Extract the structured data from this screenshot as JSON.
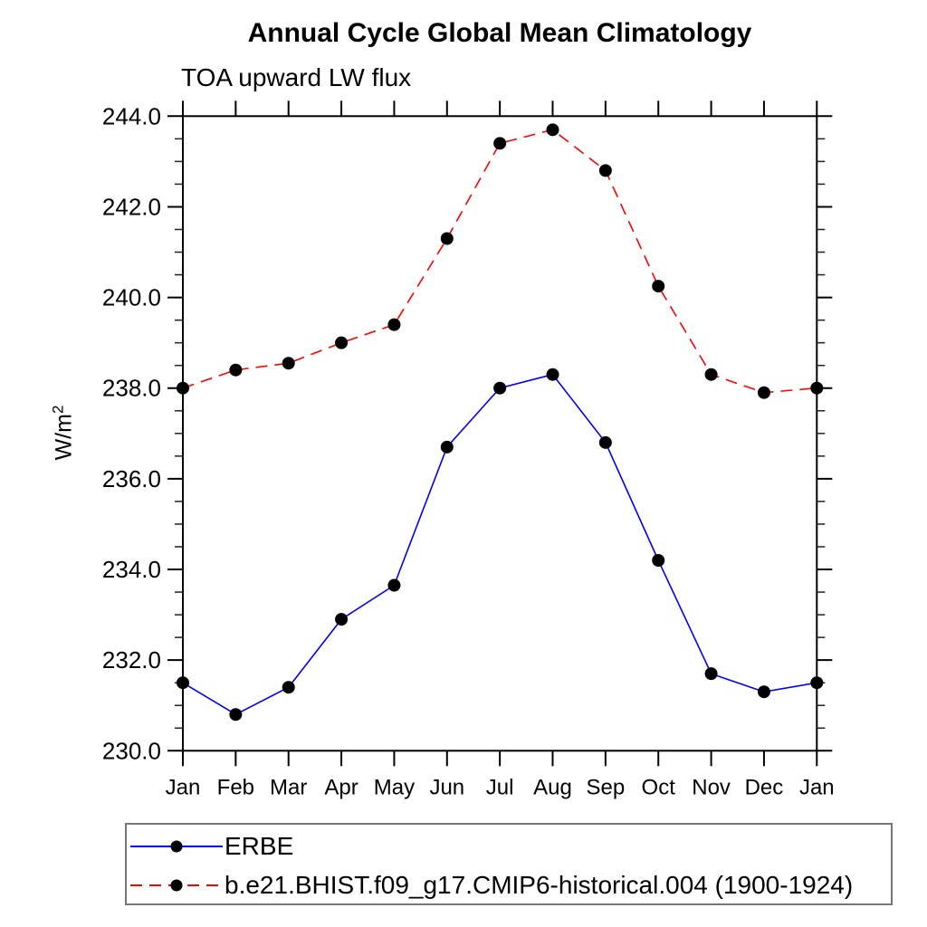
{
  "chart_data": {
    "type": "line",
    "title": "Annual Cycle Global Mean Climatology",
    "subtitle": "TOA upward LW flux",
    "ylabel": "W/m²",
    "ylabel_base": "W/m",
    "ylabel_sup": "2",
    "xlabel": "",
    "categories": [
      "Jan",
      "Feb",
      "Mar",
      "Apr",
      "May",
      "Jun",
      "Jul",
      "Aug",
      "Sep",
      "Oct",
      "Nov",
      "Dec",
      "Jan"
    ],
    "series": [
      {
        "name": "ERBE",
        "color": "#0000ff",
        "line_style": "solid",
        "marker": "filled-circle",
        "marker_color": "#000000",
        "values": [
          231.5,
          230.8,
          231.4,
          232.9,
          233.65,
          236.7,
          238.0,
          238.3,
          236.8,
          234.2,
          231.7,
          231.3,
          231.5
        ]
      },
      {
        "name": "b.e21.BHIST.f09_g17.CMIP6-historical.004 (1900-1924)",
        "color": "#ff0000",
        "line_style": "dashed",
        "marker": "filled-circle",
        "marker_color": "#000000",
        "values": [
          238.0,
          238.4,
          238.55,
          239.0,
          239.4,
          241.3,
          243.4,
          243.7,
          242.8,
          240.25,
          238.3,
          237.9,
          238.0
        ]
      }
    ],
    "ylim": [
      230.0,
      244.0
    ],
    "ytick_step": 2.0,
    "yminor_step": 0.5,
    "ytick_labels": [
      "230.0",
      "232.0",
      "234.0",
      "236.0",
      "238.0",
      "240.0",
      "242.0",
      "244.0"
    ],
    "grid": false,
    "legend_position": "bottom-left-box",
    "frame_color": "#000000",
    "background_color": "#ffffff"
  }
}
